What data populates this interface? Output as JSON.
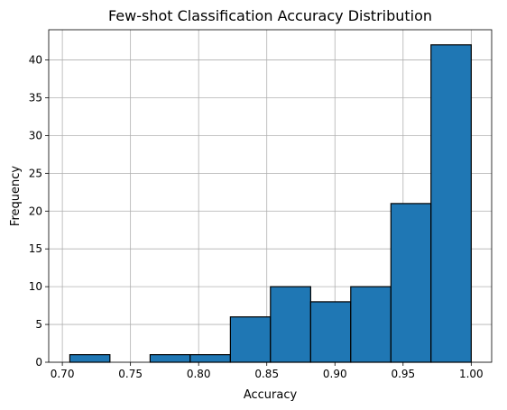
{
  "chart_data": {
    "type": "bar",
    "subtype": "histogram",
    "title": "Few-shot Classification Accuracy Distribution",
    "xlabel": "Accuracy",
    "ylabel": "Frequency",
    "xlim": [
      0.69,
      1.015
    ],
    "ylim": [
      0,
      44
    ],
    "grid": true,
    "bin_edges": [
      0.7055,
      0.7349,
      0.7644,
      0.7938,
      0.8233,
      0.8527,
      0.8822,
      0.9116,
      0.9411,
      0.9705,
      1.0
    ],
    "counts": [
      1,
      0,
      1,
      1,
      6,
      10,
      8,
      10,
      21,
      42
    ],
    "x_ticks": [
      0.7,
      0.75,
      0.8,
      0.85,
      0.9,
      0.95,
      1.0
    ],
    "x_tick_labels": [
      "0.70",
      "0.75",
      "0.80",
      "0.85",
      "0.90",
      "0.95",
      "1.00"
    ],
    "y_ticks": [
      0,
      5,
      10,
      15,
      20,
      25,
      30,
      35,
      40
    ],
    "y_tick_labels": [
      "0",
      "5",
      "10",
      "15",
      "20",
      "25",
      "30",
      "35",
      "40"
    ],
    "bar_color": "#1f77b4",
    "edge_color": "#000000",
    "grid_color": "#b0b0b0"
  }
}
